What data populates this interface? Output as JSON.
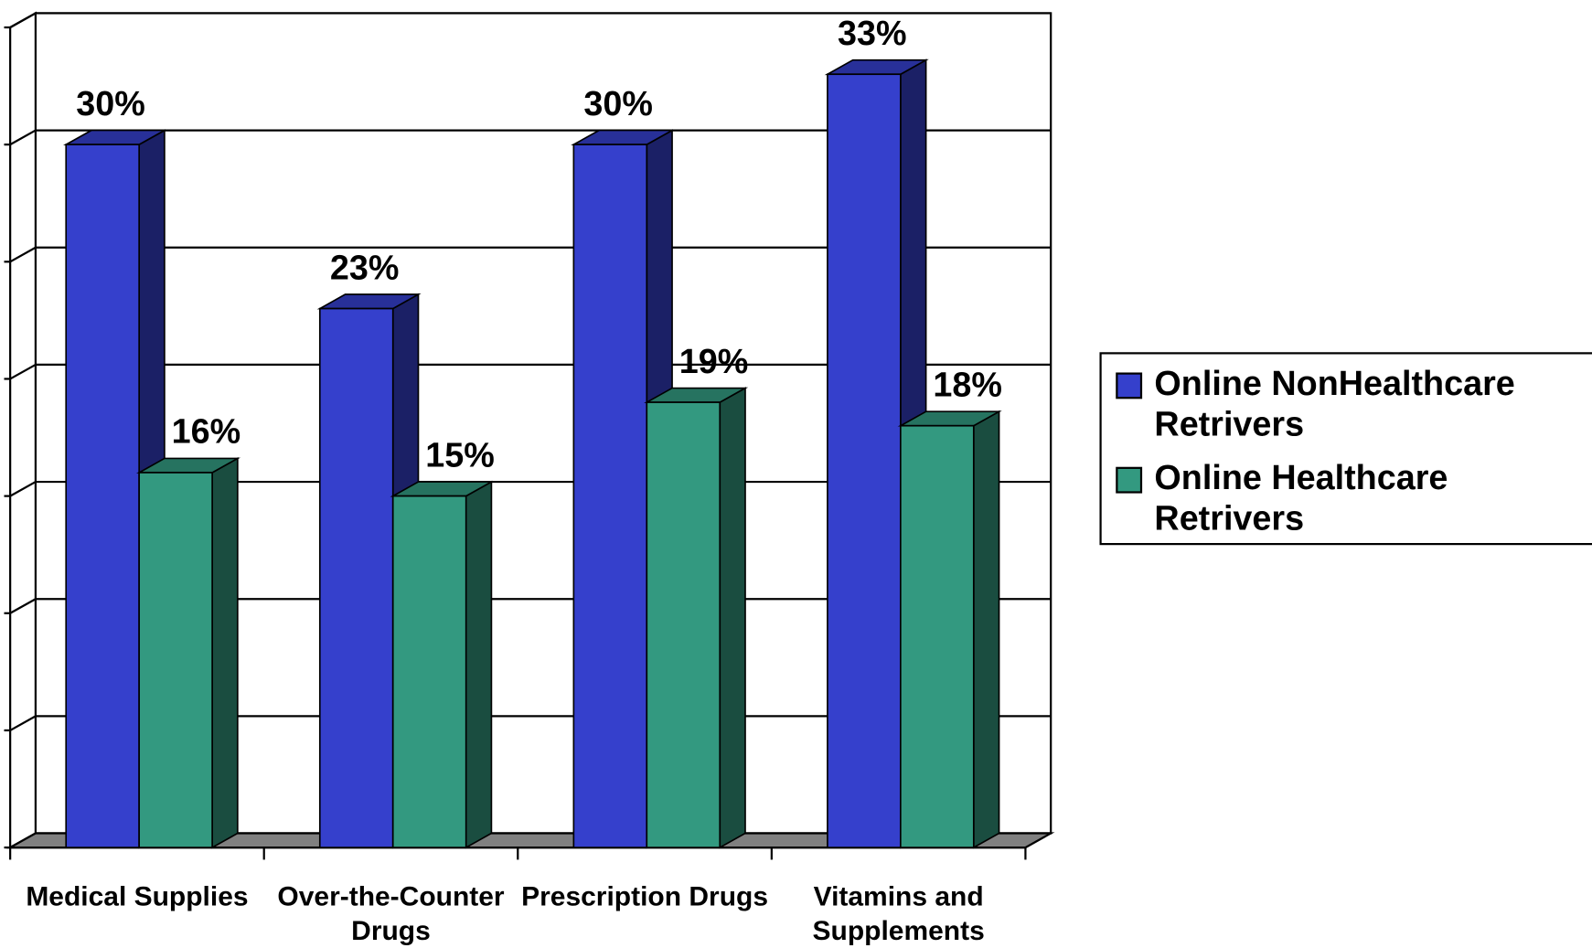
{
  "chart_data": {
    "type": "bar3d",
    "categories": [
      "Medical Supplies",
      "Over-the-Counter Drugs",
      "Prescription Drugs",
      "Vitamins and Supplements"
    ],
    "series": [
      {
        "name": "Online NonHealthcare Retrivers",
        "color": "#3540cc",
        "values": [
          30,
          23,
          30,
          33
        ],
        "value_labels": [
          "30%",
          "23%",
          "30%",
          "33%"
        ]
      },
      {
        "name": "Online Healthcare Retrivers",
        "color": "#339980",
        "values": [
          16,
          15,
          19,
          18
        ],
        "value_labels": [
          "16%",
          "15%",
          "19%",
          "18%"
        ]
      }
    ],
    "ylim": [
      0,
      35
    ],
    "yticks": [
      0,
      5,
      10,
      15,
      20,
      25,
      30,
      35
    ],
    "grid": true,
    "legend": "right"
  }
}
